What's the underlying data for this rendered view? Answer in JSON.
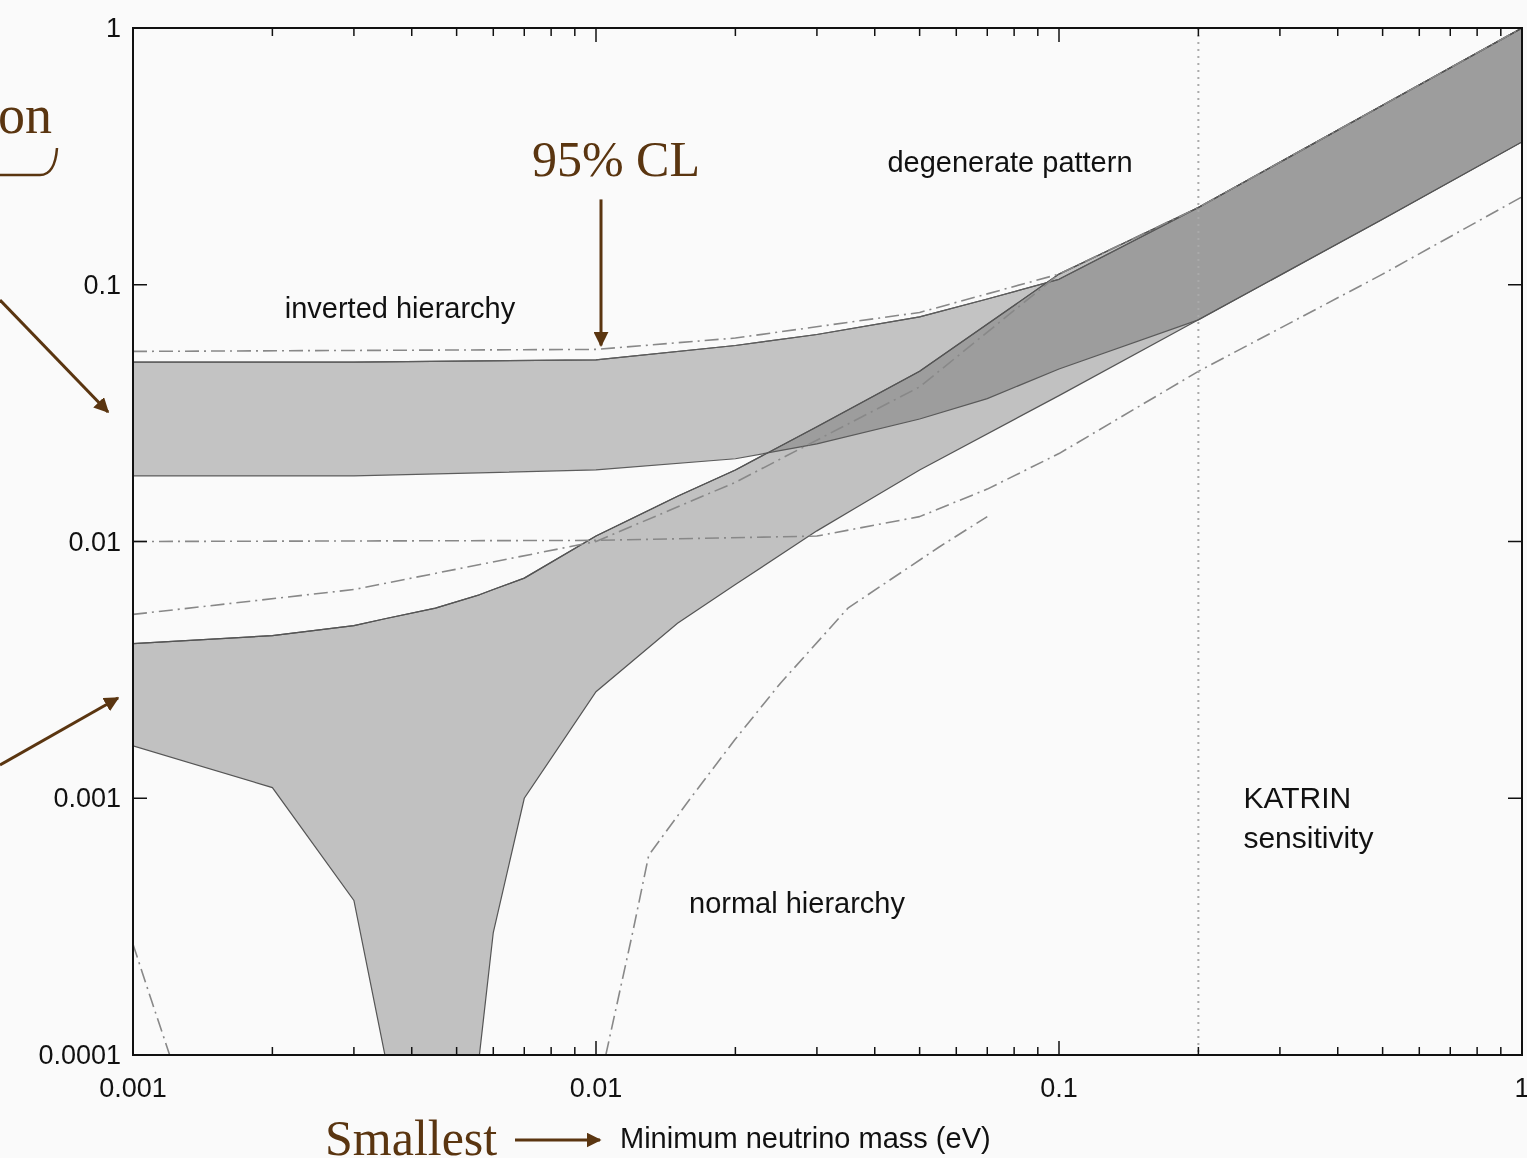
{
  "chart_data": {
    "type": "line",
    "xlabel": "Minimum neutrino mass (eV)",
    "log": "xy",
    "xlim": [
      0.001,
      1
    ],
    "ylim": [
      0.0001,
      1
    ],
    "xticks": [
      0.001,
      {
        "value": 0.002,
        "label": null
      },
      {
        "value": 0.003,
        "label": null
      },
      {
        "value": 0.004,
        "label": null
      },
      {
        "value": 0.005,
        "label": null
      },
      {
        "value": 0.006,
        "label": null
      },
      {
        "value": 0.007,
        "label": null
      },
      {
        "value": 0.008,
        "label": null
      },
      {
        "value": 0.009,
        "label": null
      },
      0.01,
      {
        "value": 0.02,
        "label": null
      },
      {
        "value": 0.03,
        "label": null
      },
      {
        "value": 0.04,
        "label": null
      },
      {
        "value": 0.05,
        "label": null
      },
      {
        "value": 0.06,
        "label": null
      },
      {
        "value": 0.07,
        "label": null
      },
      {
        "value": 0.08,
        "label": null
      },
      {
        "value": 0.09,
        "label": null
      },
      0.1,
      {
        "value": 0.2,
        "label": null
      },
      {
        "value": 0.3,
        "label": null
      },
      {
        "value": 0.4,
        "label": null
      },
      {
        "value": 0.5,
        "label": null
      },
      {
        "value": 0.6,
        "label": null
      },
      {
        "value": 0.7,
        "label": null
      },
      {
        "value": 0.8,
        "label": null
      },
      {
        "value": 0.9,
        "label": null
      },
      1
    ],
    "yticks": [
      0.0001,
      0.001,
      0.01,
      0.1,
      1
    ],
    "grid": false,
    "marker": "none",
    "series": [
      {
        "color": "#5c5c5c",
        "x": [
          0.001,
          0.003,
          0.01,
          0.02,
          0.03,
          0.05,
          0.07,
          0.1,
          0.2,
          0.5,
          1
        ],
        "values": [
          0.05,
          0.05,
          0.051,
          0.058,
          0.064,
          0.075,
          0.088,
          0.105,
          0.2,
          0.5,
          1.0
        ],
        "upper": [
          0.05,
          0.05,
          0.051,
          0.058,
          0.064,
          0.075,
          0.088,
          0.105,
          0.2,
          0.5,
          1.0
        ],
        "lower": [
          0.018,
          0.018,
          0.019,
          0.021,
          0.024,
          0.03,
          0.036,
          0.047,
          0.073,
          0.18,
          0.36
        ]
      },
      {
        "color": "#555555",
        "x": [
          0.001,
          0.002,
          0.003,
          0.0035,
          0.0045,
          0.0056,
          0.006,
          0.007,
          0.01,
          0.015,
          0.02,
          0.03,
          0.05,
          0.1,
          0.2,
          0.5,
          1
        ],
        "values": [
          0.004,
          0.0043,
          0.0047,
          0.005,
          0.0055,
          0.0062,
          0.0065,
          0.0072,
          0.0105,
          0.015,
          0.019,
          0.028,
          0.046,
          0.11,
          0.2,
          0.5,
          1.0
        ],
        "upper": [
          0.004,
          0.0043,
          0.0047,
          0.005,
          0.0055,
          0.0062,
          0.0065,
          0.0072,
          0.0105,
          0.015,
          0.019,
          0.028,
          0.046,
          0.11,
          0.2,
          0.5,
          1.0
        ],
        "lower": [
          0.0016,
          0.0011,
          0.0004,
          0.0001,
          0.0001,
          0.0001,
          0.0003,
          0.001,
          0.0026,
          0.0048,
          0.0068,
          0.011,
          0.019,
          0.037,
          0.073,
          0.18,
          0.36
        ]
      },
      {
        "color": "#888888",
        "line_style": "dashed",
        "x": [
          0.001,
          0.01,
          0.02,
          0.05,
          0.1,
          0.2,
          0.5,
          1
        ],
        "values": [
          0.055,
          0.056,
          0.062,
          0.078,
          0.11,
          0.2,
          0.5,
          1.0
        ]
      },
      {
        "color": "#888888",
        "line_style": "dashed",
        "x": [
          0.001,
          0.01,
          0.03,
          0.05,
          0.07,
          0.1,
          0.2,
          0.5,
          1
        ],
        "values": [
          0.01,
          0.0101,
          0.0105,
          0.0125,
          0.016,
          0.022,
          0.046,
          0.11,
          0.22
        ]
      },
      {
        "color": "#888888",
        "line_style": "dashed",
        "x": [
          0.0105,
          0.012,
          0.013,
          0.016,
          0.02,
          0.025,
          0.035,
          0.055,
          0.07
        ],
        "values": [
          0.0001,
          0.0003,
          0.0006,
          0.001,
          0.0017,
          0.0028,
          0.0055,
          0.0095,
          0.0125
        ]
      },
      {
        "color": "#888888",
        "line_style": "dashed",
        "x": [
          0.001,
          0.003,
          0.01,
          0.02,
          0.05,
          0.1
        ],
        "values": [
          0.0052,
          0.0065,
          0.01,
          0.017,
          0.04,
          0.11
        ]
      },
      {
        "color": "#888888",
        "line_style": "dashed",
        "x": [
          0.001,
          0.0011,
          0.0012
        ],
        "values": [
          0.00027,
          0.00016,
          0.0001
        ]
      }
    ],
    "ref_lines": [
      {
        "axis": "x",
        "value": 0.2,
        "label": "KATRIN sensitivity",
        "color": "#aaaaaa",
        "line_style": "dotted"
      }
    ],
    "annotations": [
      "degenerate pattern",
      "inverted hierarchy",
      "normal hierarchy",
      {
        "text": "95% CL",
        "x": 0.01,
        "y": 0.055
      },
      "on",
      "Smallest"
    ]
  }
}
